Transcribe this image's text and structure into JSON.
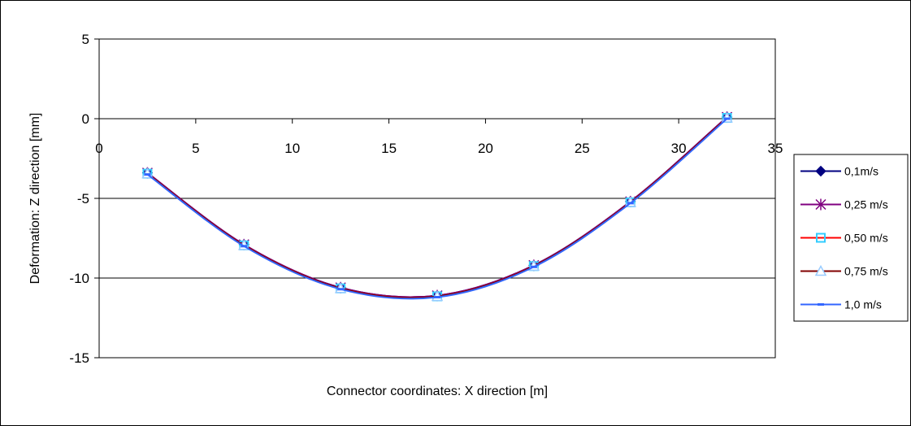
{
  "chart_data": {
    "type": "line",
    "title": "",
    "xlabel": "Connector coordinates: X direction [m]",
    "ylabel": "Deformation: Z direction [mm]",
    "xlim": [
      0,
      35
    ],
    "ylim": [
      -15,
      5
    ],
    "xticks": [
      0,
      5,
      10,
      15,
      20,
      25,
      30,
      35
    ],
    "yticks": [
      5,
      0,
      -5,
      -10,
      -15
    ],
    "x_tick_labels": [
      "0",
      "5",
      "10",
      "15",
      "20",
      "25",
      "30",
      "35"
    ],
    "y_tick_labels": [
      "5",
      "0",
      "-5",
      "-10",
      "-15"
    ],
    "grid": "horizontal major lines",
    "legend_position": "right",
    "x": [
      2.5,
      7.5,
      12.5,
      17.5,
      22.5,
      27.5,
      32.5
    ],
    "series": [
      {
        "name": "0,1m/s",
        "color": "#000080",
        "marker": "diamond",
        "values": [
          -3.4,
          -7.9,
          -10.6,
          -11.1,
          -9.2,
          -5.2,
          0.1
        ]
      },
      {
        "name": "0,25 m/s",
        "color": "#800080",
        "marker": "asterisk",
        "values": [
          -3.4,
          -7.9,
          -10.6,
          -11.1,
          -9.2,
          -5.2,
          0.1
        ]
      },
      {
        "name": "0,50 m/s",
        "color": "#ff0000",
        "marker": "square",
        "values": [
          -3.45,
          -7.95,
          -10.65,
          -11.15,
          -9.25,
          -5.25,
          0.05
        ]
      },
      {
        "name": "0,75 m/s",
        "color": "#800000",
        "marker": "triangle",
        "values": [
          -3.45,
          -7.95,
          -10.65,
          -11.15,
          -9.25,
          -5.25,
          0.05
        ]
      },
      {
        "name": "1,0 m/s",
        "color": "#3366ff",
        "marker": "dash",
        "values": [
          -3.5,
          -8.0,
          -10.7,
          -11.2,
          -9.3,
          -5.3,
          0.0
        ]
      }
    ]
  }
}
